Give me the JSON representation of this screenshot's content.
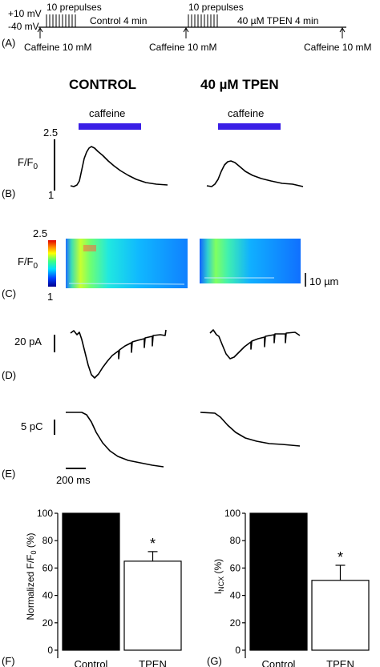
{
  "panels": {
    "A": "(A)",
    "B": "(B)",
    "C": "(C)",
    "D": "(D)",
    "E": "(E)",
    "F": "(F)",
    "G": "(G)"
  },
  "protocol": {
    "v_high": "+10 mV",
    "v_low": "-40 mV",
    "prepulses_1": "10 prepulses",
    "control_label": "Control 4 min",
    "prepulses_2": "10 prepulses",
    "tpen_label": "40 µM TPEN 4 min",
    "caffeine_1": "Caffeine 10 mM",
    "caffeine_2": "Caffeine 10 mM",
    "caffeine_3": "Caffeine 10 mM"
  },
  "conditions": {
    "control": "CONTROL",
    "tpen": "40 µM TPEN"
  },
  "caffeine_bar": {
    "label": "caffeine",
    "color": "#3a1fe6"
  },
  "traces": {
    "fluo_scale_top": "2.5",
    "fluo_scale_bottom": "1",
    "fluo_unit": "F/F",
    "fluo_unit_sub": "0",
    "image_scale_top": "2.5",
    "image_scale_bottom": "1",
    "space_scale": "10 µm",
    "current_scale": "20 pA",
    "charge_scale": "5 pC",
    "time_scale": "200 ms"
  },
  "chart_data": [
    {
      "type": "bar",
      "categories": [
        "Control",
        "TPEN"
      ],
      "values": [
        100,
        65
      ],
      "errors": [
        0,
        7
      ],
      "ylabel": "Normalized F/F0 (%)",
      "ylim": [
        0,
        100
      ],
      "yticks": [
        "0",
        "20",
        "40",
        "60",
        "80",
        "100"
      ],
      "significance": [
        "",
        "*"
      ],
      "bar_colors": [
        "#000000",
        "#ffffff"
      ]
    },
    {
      "type": "bar",
      "categories": [
        "Control",
        "TPEN"
      ],
      "values": [
        100,
        51
      ],
      "errors": [
        0,
        11
      ],
      "ylabel": "INCX (%)",
      "ylim": [
        0,
        100
      ],
      "yticks": [
        "0",
        "20",
        "40",
        "60",
        "80",
        "100"
      ],
      "significance": [
        "",
        "*"
      ],
      "bar_colors": [
        "#000000",
        "#ffffff"
      ]
    }
  ]
}
